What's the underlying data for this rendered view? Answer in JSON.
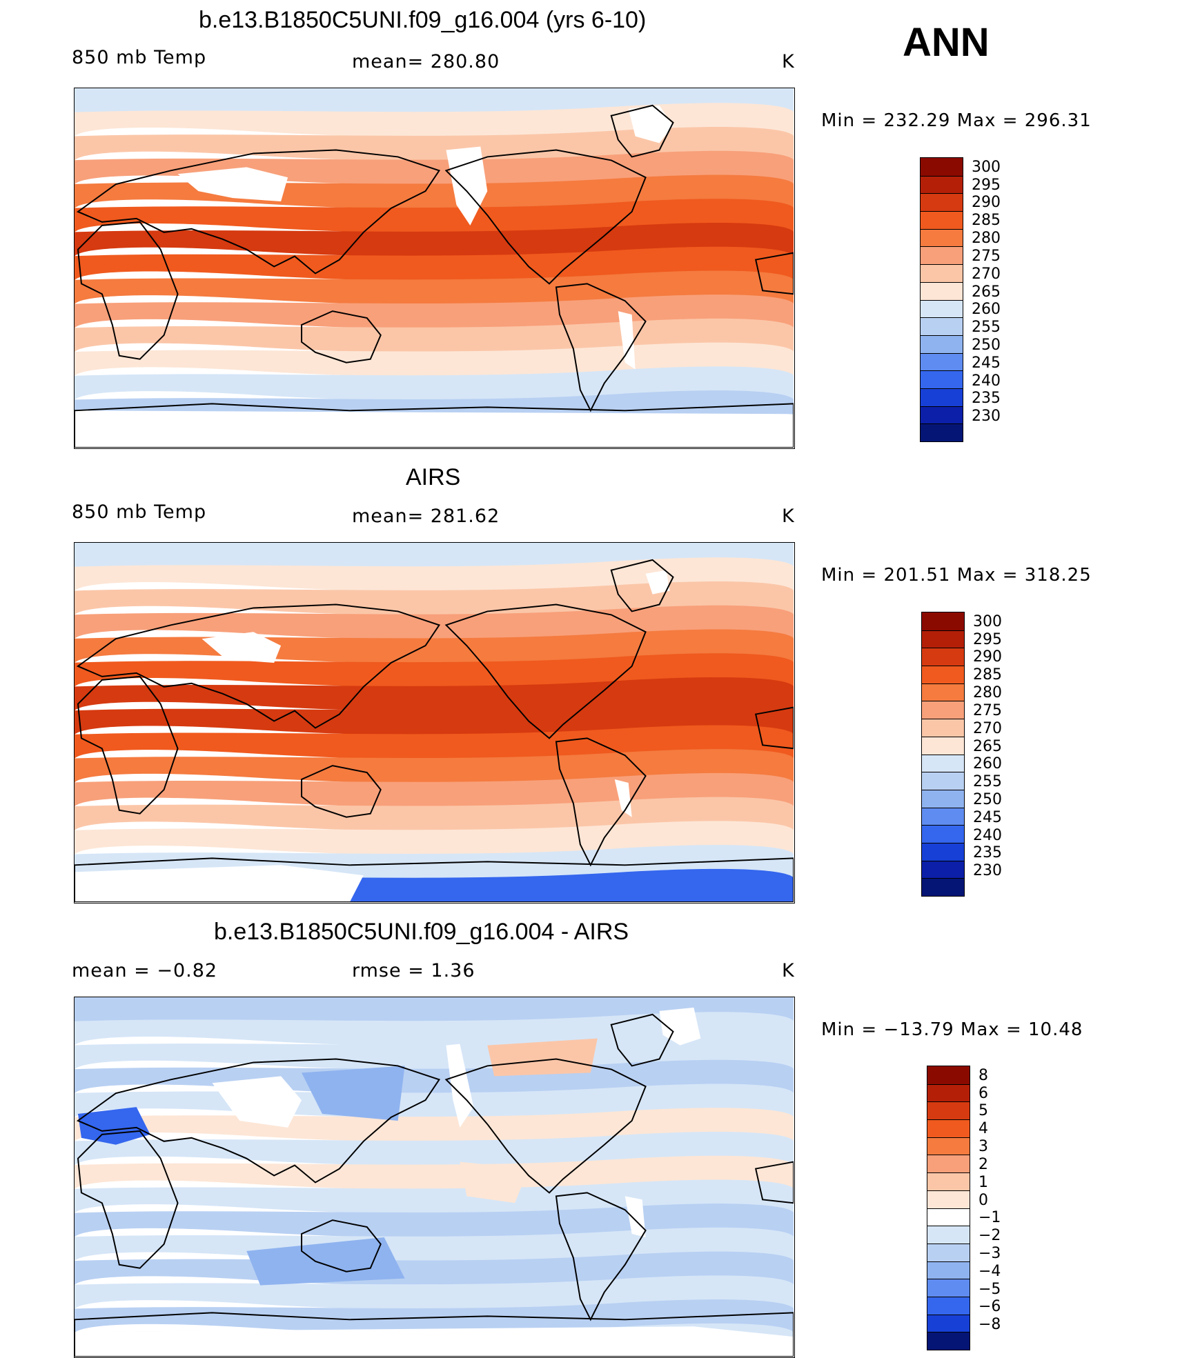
{
  "season": "ANN",
  "panels": [
    {
      "title": "b.e13.B1850C5UNI.f09_g16.004 (yrs 6-10)",
      "left_label": "850 mb Temp",
      "center_label": "mean=  280.80",
      "units": "K",
      "minmax": "Min  =  232.29  Max  =  296.31",
      "scheme": "abs",
      "colorbar": {
        "levels": [
          "300",
          "295",
          "290",
          "285",
          "280",
          "275",
          "270",
          "265",
          "260",
          "255",
          "250",
          "245",
          "240",
          "235",
          "230"
        ],
        "colors": [
          "#8b0a00",
          "#b41f08",
          "#d63a10",
          "#f05a1e",
          "#f57b3f",
          "#f8a07a",
          "#fbc6a8",
          "#fde6d6",
          "#d6e6f7",
          "#b8d0f2",
          "#8fb3ef",
          "#5f8cf0",
          "#3466ee",
          "#1740d6",
          "#0b1fa8",
          "#051575"
        ]
      }
    },
    {
      "title": "AIRS",
      "left_label": "850 mb Temp",
      "center_label": "mean=  281.62",
      "units": "K",
      "minmax": "Min  =  201.51  Max  =  318.25",
      "scheme": "abs2",
      "colorbar": {
        "levels": [
          "300",
          "295",
          "290",
          "285",
          "280",
          "275",
          "270",
          "265",
          "260",
          "255",
          "250",
          "245",
          "240",
          "235",
          "230"
        ],
        "colors": [
          "#8b0a00",
          "#b41f08",
          "#d63a10",
          "#f05a1e",
          "#f57b3f",
          "#f8a07a",
          "#fbc6a8",
          "#fde6d6",
          "#d6e6f7",
          "#b8d0f2",
          "#8fb3ef",
          "#5f8cf0",
          "#3466ee",
          "#1740d6",
          "#0b1fa8",
          "#051575"
        ]
      }
    },
    {
      "title": "b.e13.B1850C5UNI.f09_g16.004 - AIRS",
      "left_label": "mean  =     −0.82",
      "center_label": "rmse  =     1.36",
      "units": "K",
      "minmax": "Min  =  −13.79  Max  =    10.48",
      "scheme": "diff",
      "colorbar": {
        "levels": [
          "8",
          "6",
          "5",
          "4",
          "3",
          "2",
          "1",
          "0",
          "−1",
          "−2",
          "−3",
          "−4",
          "−5",
          "−6",
          "−8"
        ],
        "colors": [
          "#8b0a00",
          "#b41f08",
          "#d63a10",
          "#f05a1e",
          "#f57b3f",
          "#f8a07a",
          "#fbc6a8",
          "#fde6d6",
          "#ffffff",
          "#d6e6f7",
          "#b8d0f2",
          "#8fb3ef",
          "#5f8cf0",
          "#3466ee",
          "#1740d6",
          "#051575"
        ]
      }
    }
  ]
}
